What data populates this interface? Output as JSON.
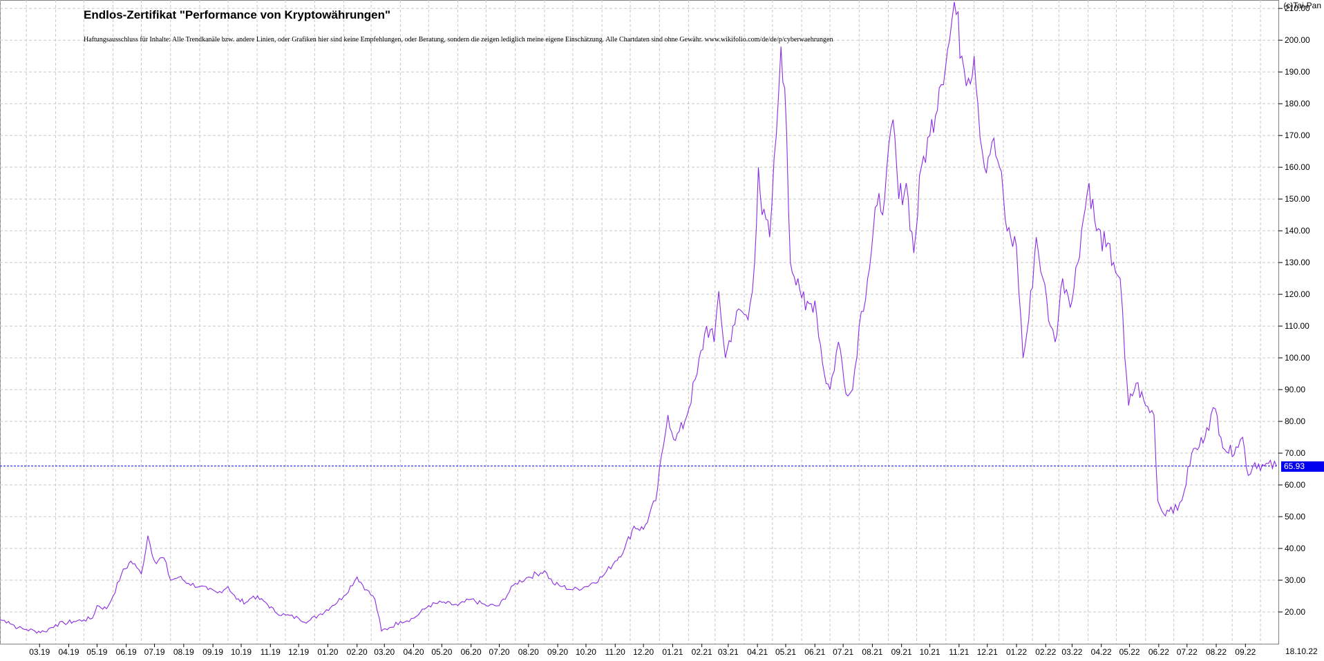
{
  "title": "Endlos-Zertifikat \"Performance von Kryptowährungen\"",
  "disclaimer": "Haftungsausschluss für Inhalte: Alle Trendkanäle bzw. andere Linien, oder Grafiken hier sind keine Empfehlungen, oder Beratung, sondern die zeigen lediglich meine eigene Einschätzung. Alle Chartdaten sind ohne Gewähr. www.wikifolio.com/de/de/p/cyberwaehrungen",
  "copyright": "(c)Tai-Pan",
  "colors": {
    "line": "#8a2be2",
    "current_line": "#0000ee",
    "grid": "#c8c8c8",
    "badge": "#0000ee"
  },
  "chart_data": {
    "type": "line",
    "title": "Endlos-Zertifikat \"Performance von Kryptowährungen\"",
    "xlabel": "",
    "ylabel": "",
    "ylim": [
      10,
      212
    ],
    "yticks": [
      "20.00",
      "30.00",
      "40.00",
      "50.00",
      "60.00",
      "70.00",
      "80.00",
      "90.00",
      "100.00",
      "110.00",
      "120.00",
      "130.00",
      "140.00",
      "150.00",
      "160.00",
      "170.00",
      "180.00",
      "190.00",
      "200.00",
      "210.00"
    ],
    "xticks": [
      "03.19",
      "04.19",
      "05.19",
      "06.19",
      "07.19",
      "08.19",
      "09.19",
      "10.19",
      "11.19",
      "12.19",
      "01.20",
      "02.20",
      "03.20",
      "04.20",
      "05.20",
      "06.20",
      "07.20",
      "08.20",
      "09.20",
      "10.20",
      "11.20",
      "12.20",
      "01.21",
      "02.21",
      "03.21",
      "04.21",
      "05.21",
      "06.21",
      "07.21",
      "08.21",
      "09.21",
      "10.21",
      "11.21",
      "12.21",
      "01.22",
      "02.22",
      "03.22",
      "04.22",
      "05.22",
      "06.22",
      "07.22",
      "08.22",
      "09.22"
    ],
    "grid": true,
    "current_value": "65.93",
    "last_date": "18.10.22",
    "series": [
      {
        "values": [
          {
            "x": "2019-02-01",
            "y": 17.5
          },
          {
            "x": "2019-02-10",
            "y": 17
          },
          {
            "x": "2019-02-20",
            "y": 15
          },
          {
            "x": "2019-03-01",
            "y": 14.5
          },
          {
            "x": "2019-03-10",
            "y": 14
          },
          {
            "x": "2019-03-20",
            "y": 13.8
          },
          {
            "x": "2019-04-01",
            "y": 16
          },
          {
            "x": "2019-04-10",
            "y": 16.5
          },
          {
            "x": "2019-04-20",
            "y": 17
          },
          {
            "x": "2019-05-01",
            "y": 17.5
          },
          {
            "x": "2019-05-10",
            "y": 18
          },
          {
            "x": "2019-05-15",
            "y": 22
          },
          {
            "x": "2019-05-25",
            "y": 21
          },
          {
            "x": "2019-06-01",
            "y": 25
          },
          {
            "x": "2019-06-10",
            "y": 32
          },
          {
            "x": "2019-06-20",
            "y": 36
          },
          {
            "x": "2019-06-26",
            "y": 34
          },
          {
            "x": "2019-07-01",
            "y": 32
          },
          {
            "x": "2019-07-08",
            "y": 44
          },
          {
            "x": "2019-07-15",
            "y": 36
          },
          {
            "x": "2019-07-25",
            "y": 37
          },
          {
            "x": "2019-08-01",
            "y": 30
          },
          {
            "x": "2019-08-10",
            "y": 31
          },
          {
            "x": "2019-08-20",
            "y": 29
          },
          {
            "x": "2019-09-01",
            "y": 28
          },
          {
            "x": "2019-09-10",
            "y": 27
          },
          {
            "x": "2019-09-20",
            "y": 26
          },
          {
            "x": "2019-10-01",
            "y": 28
          },
          {
            "x": "2019-10-10",
            "y": 24
          },
          {
            "x": "2019-10-20",
            "y": 23
          },
          {
            "x": "2019-10-28",
            "y": 25
          },
          {
            "x": "2019-11-10",
            "y": 23
          },
          {
            "x": "2019-11-20",
            "y": 20
          },
          {
            "x": "2019-12-01",
            "y": 19
          },
          {
            "x": "2019-12-15",
            "y": 18
          },
          {
            "x": "2019-12-25",
            "y": 17
          },
          {
            "x": "2020-01-05",
            "y": 19
          },
          {
            "x": "2020-01-20",
            "y": 22
          },
          {
            "x": "2020-02-01",
            "y": 25
          },
          {
            "x": "2020-02-15",
            "y": 31
          },
          {
            "x": "2020-02-25",
            "y": 27
          },
          {
            "x": "2020-03-05",
            "y": 24
          },
          {
            "x": "2020-03-12",
            "y": 14
          },
          {
            "x": "2020-03-20",
            "y": 15
          },
          {
            "x": "2020-04-01",
            "y": 17
          },
          {
            "x": "2020-04-15",
            "y": 18
          },
          {
            "x": "2020-05-01",
            "y": 22
          },
          {
            "x": "2020-05-15",
            "y": 23
          },
          {
            "x": "2020-06-01",
            "y": 22
          },
          {
            "x": "2020-06-15",
            "y": 24
          },
          {
            "x": "2020-07-01",
            "y": 22
          },
          {
            "x": "2020-07-15",
            "y": 22
          },
          {
            "x": "2020-08-01",
            "y": 29
          },
          {
            "x": "2020-08-15",
            "y": 31
          },
          {
            "x": "2020-09-01",
            "y": 33
          },
          {
            "x": "2020-09-10",
            "y": 29
          },
          {
            "x": "2020-09-20",
            "y": 28
          },
          {
            "x": "2020-10-01",
            "y": 27
          },
          {
            "x": "2020-10-15",
            "y": 28
          },
          {
            "x": "2020-11-01",
            "y": 31
          },
          {
            "x": "2020-11-15",
            "y": 36
          },
          {
            "x": "2020-11-25",
            "y": 40
          },
          {
            "x": "2020-12-05",
            "y": 47
          },
          {
            "x": "2020-12-15",
            "y": 46
          },
          {
            "x": "2020-12-28",
            "y": 55
          },
          {
            "x": "2021-01-05",
            "y": 72
          },
          {
            "x": "2021-01-10",
            "y": 82
          },
          {
            "x": "2021-01-18",
            "y": 74
          },
          {
            "x": "2021-01-28",
            "y": 80
          },
          {
            "x": "2021-02-10",
            "y": 95
          },
          {
            "x": "2021-02-20",
            "y": 110
          },
          {
            "x": "2021-02-28",
            "y": 105
          },
          {
            "x": "2021-03-05",
            "y": 121
          },
          {
            "x": "2021-03-12",
            "y": 100
          },
          {
            "x": "2021-03-20",
            "y": 110
          },
          {
            "x": "2021-03-28",
            "y": 115
          },
          {
            "x": "2021-04-05",
            "y": 112
          },
          {
            "x": "2021-04-12",
            "y": 130
          },
          {
            "x": "2021-04-16",
            "y": 160
          },
          {
            "x": "2021-04-20",
            "y": 145
          },
          {
            "x": "2021-04-28",
            "y": 138
          },
          {
            "x": "2021-05-05",
            "y": 170
          },
          {
            "x": "2021-05-10",
            "y": 198
          },
          {
            "x": "2021-05-14",
            "y": 185
          },
          {
            "x": "2021-05-20",
            "y": 130
          },
          {
            "x": "2021-05-28",
            "y": 125
          },
          {
            "x": "2021-06-05",
            "y": 115
          },
          {
            "x": "2021-06-15",
            "y": 118
          },
          {
            "x": "2021-06-25",
            "y": 95
          },
          {
            "x": "2021-07-01",
            "y": 90
          },
          {
            "x": "2021-07-10",
            "y": 105
          },
          {
            "x": "2021-07-20",
            "y": 88
          },
          {
            "x": "2021-07-25",
            "y": 90
          },
          {
            "x": "2021-08-01",
            "y": 110
          },
          {
            "x": "2021-08-10",
            "y": 125
          },
          {
            "x": "2021-08-20",
            "y": 148
          },
          {
            "x": "2021-08-28",
            "y": 150
          },
          {
            "x": "2021-09-06",
            "y": 175
          },
          {
            "x": "2021-09-12",
            "y": 150
          },
          {
            "x": "2021-09-20",
            "y": 155
          },
          {
            "x": "2021-09-28",
            "y": 133
          },
          {
            "x": "2021-10-06",
            "y": 160
          },
          {
            "x": "2021-10-15",
            "y": 170
          },
          {
            "x": "2021-10-25",
            "y": 185
          },
          {
            "x": "2021-11-05",
            "y": 200
          },
          {
            "x": "2021-11-10",
            "y": 212
          },
          {
            "x": "2021-11-18",
            "y": 195
          },
          {
            "x": "2021-11-25",
            "y": 188
          },
          {
            "x": "2021-12-01",
            "y": 195
          },
          {
            "x": "2021-12-05",
            "y": 180
          },
          {
            "x": "2021-12-12",
            "y": 160
          },
          {
            "x": "2021-12-20",
            "y": 168
          },
          {
            "x": "2021-12-28",
            "y": 160
          },
          {
            "x": "2022-01-05",
            "y": 140
          },
          {
            "x": "2022-01-15",
            "y": 135
          },
          {
            "x": "2022-01-22",
            "y": 100
          },
          {
            "x": "2022-01-28",
            "y": 112
          },
          {
            "x": "2022-02-05",
            "y": 138
          },
          {
            "x": "2022-02-12",
            "y": 125
          },
          {
            "x": "2022-02-20",
            "y": 110
          },
          {
            "x": "2022-02-25",
            "y": 105
          },
          {
            "x": "2022-03-05",
            "y": 125
          },
          {
            "x": "2022-03-15",
            "y": 118
          },
          {
            "x": "2022-03-25",
            "y": 140
          },
          {
            "x": "2022-04-02",
            "y": 155
          },
          {
            "x": "2022-04-10",
            "y": 140
          },
          {
            "x": "2022-04-20",
            "y": 135
          },
          {
            "x": "2022-04-28",
            "y": 130
          },
          {
            "x": "2022-05-05",
            "y": 125
          },
          {
            "x": "2022-05-10",
            "y": 100
          },
          {
            "x": "2022-05-14",
            "y": 85
          },
          {
            "x": "2022-05-22",
            "y": 92
          },
          {
            "x": "2022-06-01",
            "y": 85
          },
          {
            "x": "2022-06-10",
            "y": 82
          },
          {
            "x": "2022-06-14",
            "y": 55
          },
          {
            "x": "2022-06-20",
            "y": 51
          },
          {
            "x": "2022-06-28",
            "y": 53
          },
          {
            "x": "2022-07-05",
            "y": 52
          },
          {
            "x": "2022-07-12",
            "y": 58
          },
          {
            "x": "2022-07-20",
            "y": 70
          },
          {
            "x": "2022-07-28",
            "y": 72
          },
          {
            "x": "2022-08-05",
            "y": 78
          },
          {
            "x": "2022-08-14",
            "y": 84
          },
          {
            "x": "2022-08-20",
            "y": 75
          },
          {
            "x": "2022-08-28",
            "y": 70
          },
          {
            "x": "2022-09-05",
            "y": 72
          },
          {
            "x": "2022-09-12",
            "y": 75
          },
          {
            "x": "2022-09-18",
            "y": 63
          },
          {
            "x": "2022-09-25",
            "y": 67
          },
          {
            "x": "2022-10-05",
            "y": 66
          },
          {
            "x": "2022-10-18",
            "y": 65.93
          }
        ]
      }
    ]
  }
}
